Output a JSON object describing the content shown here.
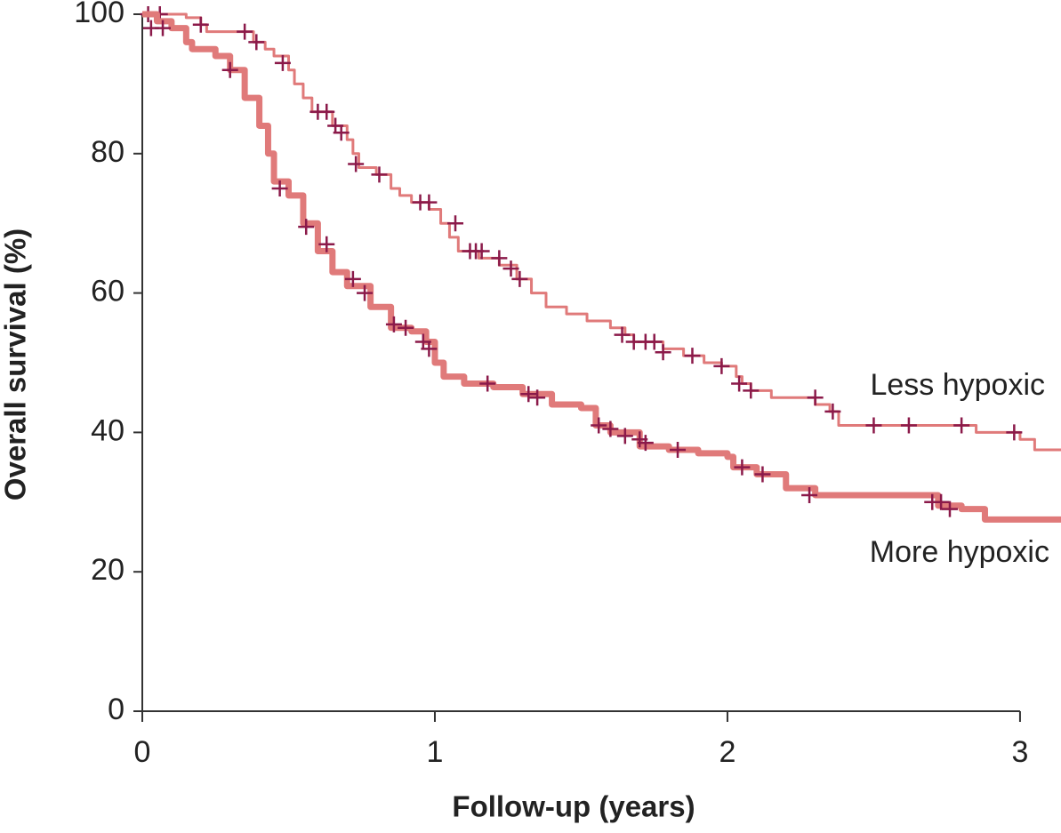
{
  "chart_data": {
    "type": "step",
    "xlabel": "Follow-up (years)",
    "ylabel": "Overall survival (%)",
    "xlim": [
      0,
      3.14
    ],
    "ylim": [
      0,
      100
    ],
    "xticks": [
      0,
      1,
      2,
      3
    ],
    "yticks": [
      0,
      20,
      40,
      60,
      80,
      100
    ],
    "censor_color": "#8b1a4a",
    "series": [
      {
        "name": "Less hypoxic",
        "color": "#e07a7a",
        "width": 3,
        "x": [
          0,
          0.1,
          0.15,
          0.2,
          0.22,
          0.35,
          0.38,
          0.42,
          0.45,
          0.5,
          0.52,
          0.55,
          0.58,
          0.65,
          0.7,
          0.72,
          0.74,
          0.8,
          0.85,
          0.88,
          0.92,
          0.98,
          1.02,
          1.05,
          1.08,
          1.15,
          1.22,
          1.28,
          1.33,
          1.38,
          1.45,
          1.52,
          1.6,
          1.65,
          1.68,
          1.78,
          1.85,
          1.92,
          1.98,
          2.03,
          2.05,
          2.08,
          2.15,
          2.3,
          2.35,
          2.38,
          2.8,
          2.85,
          3.0,
          3.05,
          3.14
        ],
        "values": [
          100,
          100,
          99.5,
          98.5,
          97.5,
          97.5,
          96,
          95,
          94,
          92,
          90,
          88,
          86,
          84,
          82,
          80,
          78,
          77,
          75,
          74,
          73,
          72,
          70,
          68,
          66,
          65,
          64,
          62,
          60,
          58,
          57,
          56,
          55,
          54,
          53,
          52,
          51,
          50,
          49.5,
          48,
          47,
          46,
          45,
          44,
          43,
          41,
          41,
          40,
          39,
          37.5,
          37.5
        ],
        "censored": {
          "x": [
            0.02,
            0.06,
            0.2,
            0.35,
            0.39,
            0.48,
            0.6,
            0.63,
            0.66,
            0.68,
            0.73,
            0.81,
            0.95,
            0.98,
            1.07,
            1.12,
            1.14,
            1.16,
            1.22,
            1.26,
            1.29,
            1.64,
            1.68,
            1.72,
            1.75,
            1.78,
            1.88,
            1.98,
            2.04,
            2.08,
            2.3,
            2.36,
            2.5,
            2.62,
            2.8,
            2.98
          ],
          "values": [
            100,
            100,
            98.5,
            97.5,
            96,
            93,
            86,
            86,
            84,
            83,
            78.5,
            77,
            73,
            73,
            70,
            66,
            66,
            66,
            65,
            63.5,
            62,
            54,
            53,
            53,
            53,
            51.5,
            51,
            49.5,
            47,
            46,
            45,
            43,
            41,
            41,
            41,
            40
          ]
        }
      },
      {
        "name": "More hypoxic",
        "color": "#e07a7a",
        "width": 7,
        "x": [
          0,
          0.05,
          0.1,
          0.15,
          0.17,
          0.25,
          0.3,
          0.35,
          0.4,
          0.43,
          0.45,
          0.5,
          0.55,
          0.6,
          0.65,
          0.7,
          0.78,
          0.85,
          0.92,
          0.97,
          1.0,
          1.03,
          1.1,
          1.2,
          1.3,
          1.4,
          1.5,
          1.55,
          1.6,
          1.7,
          1.8,
          1.9,
          2.0,
          2.02,
          2.1,
          2.2,
          2.3,
          2.68,
          2.72,
          2.8,
          2.88,
          3.14
        ],
        "values": [
          100,
          99,
          98,
          96,
          95,
          94,
          92,
          88,
          84,
          80,
          76,
          74,
          70,
          66,
          63,
          61,
          58,
          55,
          54.5,
          53,
          50,
          48,
          47,
          46.5,
          45.5,
          44,
          43.5,
          41,
          40,
          38,
          37.5,
          37,
          36.5,
          35,
          34,
          32,
          31,
          31,
          29.5,
          29,
          27.5,
          27.5
        ],
        "censored": {
          "x": [
            0.03,
            0.07,
            0.3,
            0.47,
            0.56,
            0.63,
            0.72,
            0.76,
            0.86,
            0.9,
            0.96,
            0.98,
            1.18,
            1.32,
            1.35,
            1.56,
            1.6,
            1.65,
            1.7,
            1.72,
            1.83,
            2.05,
            2.12,
            2.28,
            2.7,
            2.73,
            2.76
          ],
          "values": [
            98,
            98,
            92,
            75,
            69.5,
            67,
            62,
            60,
            55.5,
            55,
            53,
            52,
            47,
            45.5,
            45,
            41,
            40.5,
            39.5,
            39,
            38.5,
            37.5,
            35,
            34,
            31,
            30,
            30,
            29
          ]
        }
      }
    ]
  }
}
